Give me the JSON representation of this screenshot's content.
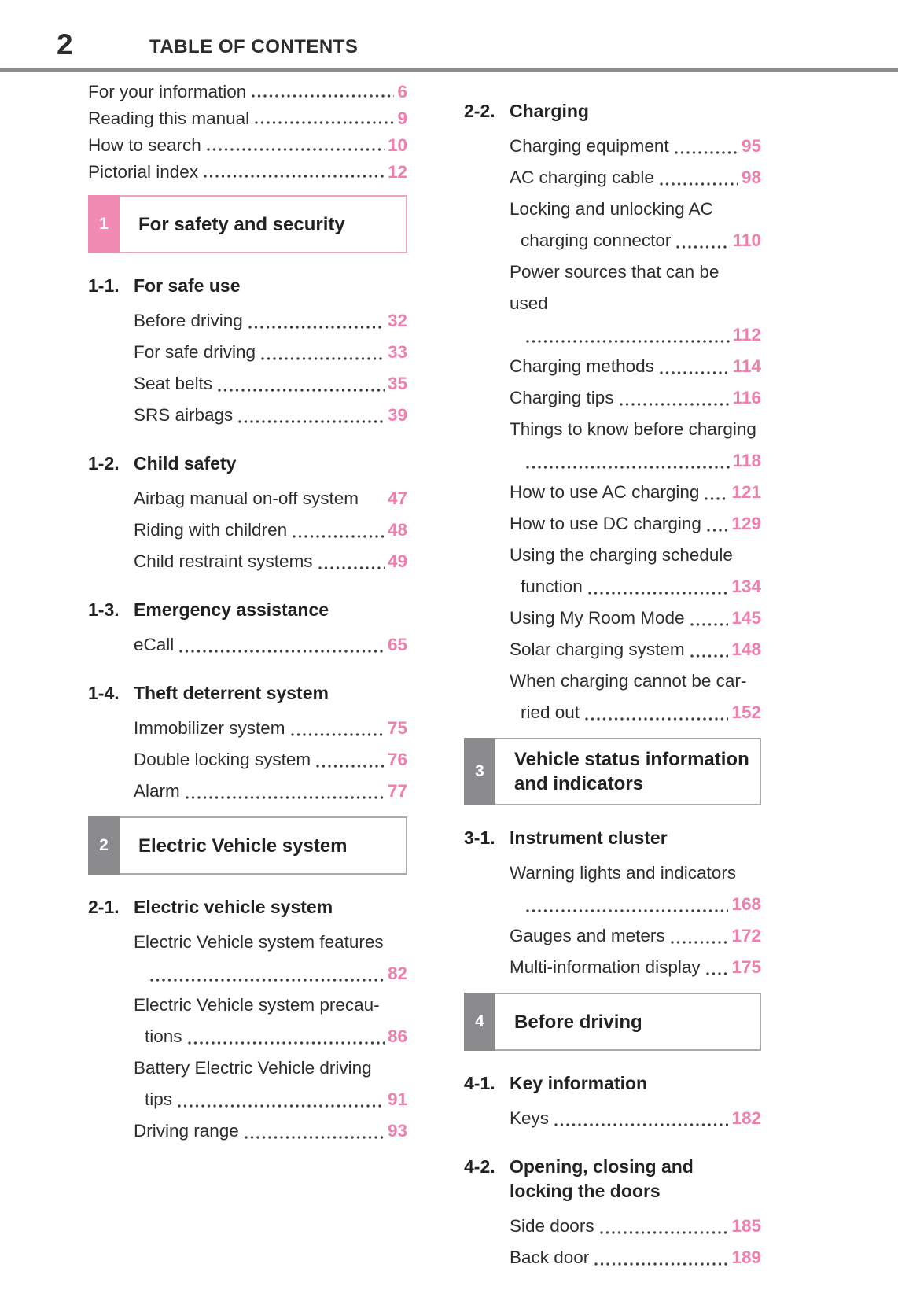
{
  "header": {
    "page_number": "2",
    "title": "TABLE OF CONTENTS"
  },
  "colors": {
    "page_number_pink": "#ef7fad",
    "tab_pink": "#f18bb4",
    "tab_gray": "#8b8b8d",
    "box_border_pink": "#e9a6c3",
    "box_border_gray": "#aaaaac",
    "header_rule_gray": "#8d8d8f",
    "text": "#2d2d2f"
  },
  "columns": {
    "left": [
      {
        "type": "frontmatter",
        "entries": [
          {
            "label": "For your information",
            "page": "6"
          },
          {
            "label": "Reading this manual",
            "page": "9"
          },
          {
            "label": "How to search",
            "page": "10"
          },
          {
            "label": "Pictorial index",
            "page": "12"
          }
        ]
      },
      {
        "type": "section",
        "number": "1",
        "title": "For safety and security",
        "accent": "pink"
      },
      {
        "type": "subsection",
        "number": "1-1.",
        "title": "For safe use",
        "entries": [
          {
            "label": "Before driving",
            "page": "32"
          },
          {
            "label": "For safe driving",
            "page": "33"
          },
          {
            "label": "Seat belts",
            "page": "35"
          },
          {
            "label": "SRS airbags",
            "page": "39"
          }
        ]
      },
      {
        "type": "subsection",
        "number": "1-2.",
        "title": "Child safety",
        "entries": [
          {
            "label": "Airbag manual on-off system",
            "page": "47",
            "nodots": true
          },
          {
            "label": "Riding with children",
            "page": "48"
          },
          {
            "label": "Child restraint systems",
            "page": "49"
          }
        ]
      },
      {
        "type": "subsection",
        "number": "1-3.",
        "title": "Emergency assistance",
        "entries": [
          {
            "label": "eCall",
            "page": "65"
          }
        ]
      },
      {
        "type": "subsection",
        "number": "1-4.",
        "title": "Theft deterrent system",
        "entries": [
          {
            "label": "Immobilizer system",
            "page": "75"
          },
          {
            "label": "Double locking system",
            "page": "76"
          },
          {
            "label": "Alarm",
            "page": "77"
          }
        ]
      },
      {
        "type": "section",
        "number": "2",
        "title": "Electric Vehicle system",
        "accent": "gray"
      },
      {
        "type": "subsection",
        "number": "2-1.",
        "title": "Electric vehicle system",
        "entries": [
          {
            "label": "Electric Vehicle system features",
            "label2": "",
            "page": "82"
          },
          {
            "label": "Electric Vehicle system precau-",
            "label2": "tions",
            "page": "86"
          },
          {
            "label": "Battery Electric Vehicle driving",
            "label2": "tips",
            "page": "91"
          },
          {
            "label": "Driving range",
            "page": "93"
          }
        ]
      }
    ],
    "right": [
      {
        "type": "subsection",
        "number": "2-2.",
        "title": "Charging",
        "entries": [
          {
            "label": "Charging equipment",
            "page": "95"
          },
          {
            "label": "AC charging cable",
            "page": "98"
          },
          {
            "label": "Locking and unlocking AC",
            "label2": "charging connector",
            "page": "110"
          },
          {
            "label": "Power sources that can be used",
            "label2": "",
            "page": "112"
          },
          {
            "label": "Charging methods",
            "page": "114"
          },
          {
            "label": "Charging tips",
            "page": "116"
          },
          {
            "label": "Things to know before charging",
            "label2": "",
            "page": "118"
          },
          {
            "label": "How to use AC charging",
            "page": "121"
          },
          {
            "label": "How to use DC charging",
            "page": "129"
          },
          {
            "label": "Using the charging schedule",
            "label2": "function",
            "page": "134"
          },
          {
            "label": "Using My Room Mode",
            "page": "145"
          },
          {
            "label": "Solar charging system",
            "page": "148"
          },
          {
            "label": "When charging cannot be car-",
            "label2": "ried out",
            "page": "152"
          }
        ]
      },
      {
        "type": "section",
        "number": "3",
        "title": "Vehicle status information",
        "title2": "and indicators",
        "accent": "gray"
      },
      {
        "type": "subsection",
        "number": "3-1.",
        "title": "Instrument cluster",
        "entries": [
          {
            "label": "Warning lights and indicators",
            "label2": "",
            "page": "168"
          },
          {
            "label": "Gauges and meters",
            "page": "172"
          },
          {
            "label": "Multi-information display",
            "page": "175"
          }
        ]
      },
      {
        "type": "section",
        "number": "4",
        "title": "Before driving",
        "accent": "gray"
      },
      {
        "type": "subsection",
        "number": "4-1.",
        "title": "Key information",
        "entries": [
          {
            "label": "Keys",
            "page": "182"
          }
        ]
      },
      {
        "type": "subsection",
        "number": "4-2.",
        "title": "Opening, closing and locking the doors",
        "entries": [
          {
            "label": "Side doors",
            "page": "185"
          },
          {
            "label": "Back door",
            "page": "189"
          }
        ]
      }
    ]
  }
}
